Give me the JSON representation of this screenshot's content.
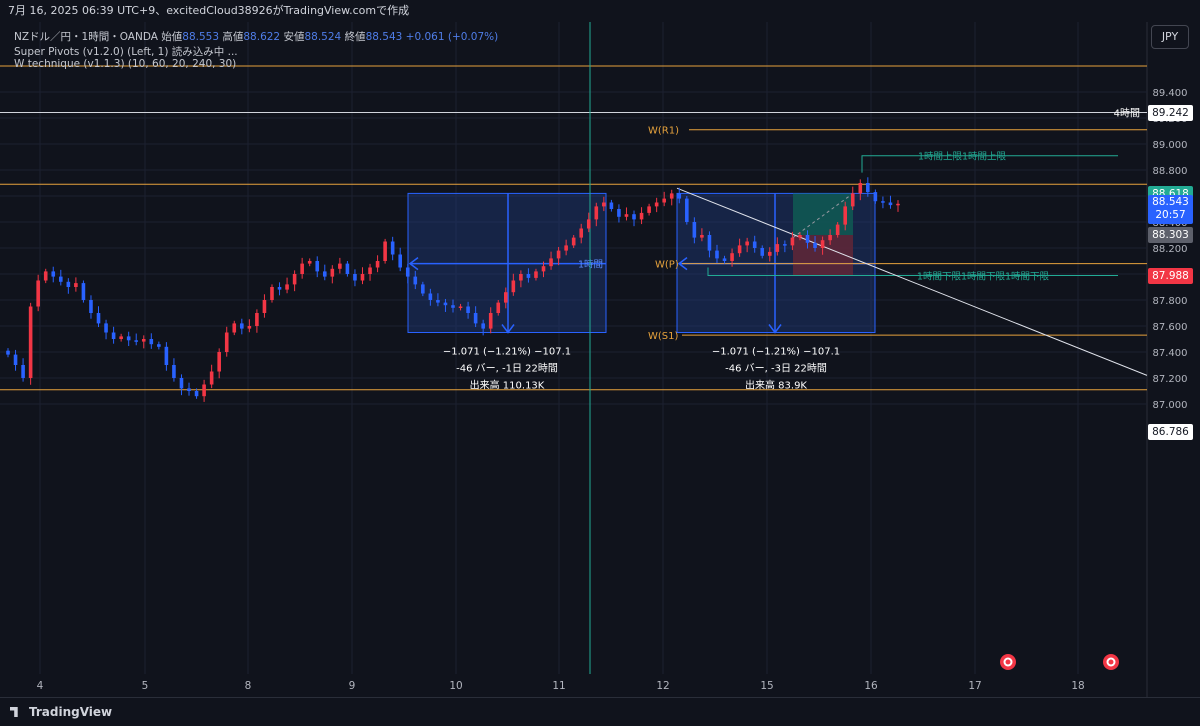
{
  "header": {
    "text": "7月 16, 2025 06:39 UTC+9、excitedCloud38926がTradingView.comで作成"
  },
  "legend": {
    "symbol": "NZドル／円・1時間・OANDA",
    "open_label": "始値",
    "open": "88.553",
    "high_label": "高値",
    "high": "88.622",
    "low_label": "安値",
    "low": "88.524",
    "close_label": "終値",
    "close": "88.543",
    "change": "+0.061 (+0.07%)",
    "indicator1": "Super Pivots (v1.2.0) (Left, 1) 読み込み中 ...",
    "indicator2": "W technique (v1.1.3) (10, 60, 20, 240, 30)"
  },
  "currency": "JPY",
  "footer": {
    "logo": "TradingView"
  },
  "colors": {
    "up": "#f23645",
    "down": "#2962ff",
    "orange": "#e6a23c",
    "green": "#22ab94",
    "white_line": "#d1d4dc",
    "box_fill": "#1f3a7a",
    "box_stroke": "#2962ff"
  },
  "chart_data": {
    "type": "candlestick",
    "symbol": "NZDJPY",
    "timeframe": "1時間",
    "ylim": [
      86.72,
      89.64
    ],
    "y_ticks": [
      "89.400",
      "89.200",
      "89.000",
      "88.800",
      "88.600",
      "88.400",
      "88.200",
      "88.000",
      "87.800",
      "87.600",
      "87.400",
      "87.200",
      "87.000"
    ],
    "x_ticks": [
      "4",
      "5",
      "8",
      "9",
      "10",
      "11",
      "12",
      "15",
      "16",
      "17",
      "18"
    ],
    "close_path": [
      87.38,
      87.3,
      87.2,
      87.75,
      87.95,
      88.02,
      87.98,
      87.94,
      87.9,
      87.93,
      87.8,
      87.7,
      87.62,
      87.55,
      87.5,
      87.52,
      87.49,
      87.48,
      87.5,
      87.46,
      87.44,
      87.3,
      87.2,
      87.12,
      87.1,
      87.06,
      87.15,
      87.25,
      87.4,
      87.55,
      87.62,
      87.58,
      87.6,
      87.7,
      87.8,
      87.9,
      87.88,
      87.92,
      88.0,
      88.08,
      88.1,
      88.02,
      87.98,
      88.04,
      88.08,
      88.0,
      87.95,
      88.0,
      88.05,
      88.1,
      88.25,
      88.15,
      88.05,
      87.98,
      87.92,
      87.85,
      87.8,
      87.78,
      87.76,
      87.74,
      87.75,
      87.7,
      87.62,
      87.58,
      87.7,
      87.78,
      87.86,
      87.95,
      88.0,
      87.97,
      88.02,
      88.06,
      88.12,
      88.18,
      88.22,
      88.28,
      88.35,
      88.42,
      88.52,
      88.55,
      88.5,
      88.44,
      88.46,
      88.42,
      88.47,
      88.52,
      88.55,
      88.58,
      88.62,
      88.58,
      88.4,
      88.28,
      88.3,
      88.18,
      88.12,
      88.1,
      88.16,
      88.22,
      88.25,
      88.2,
      88.14,
      88.17,
      88.23,
      88.22,
      88.28,
      88.3,
      88.24,
      88.2,
      88.26,
      88.3,
      88.38,
      88.52,
      88.62,
      88.7,
      88.63,
      88.56,
      88.55,
      88.53,
      88.54
    ],
    "candles_estimated": true,
    "pivots": [
      {
        "label": "W(R1)",
        "value": 89.11
      },
      {
        "label": "W(P)",
        "value": 88.08
      },
      {
        "label": "W(S1)",
        "value": 87.53
      }
    ],
    "hlines": [
      {
        "label": "4時間",
        "value": 89.242
      },
      {
        "label": "1時間上限1時間上限",
        "value": 88.91
      },
      {
        "label": "1時間下限1時間下限1時間下限",
        "value": 87.988
      },
      {
        "label": "",
        "value": 88.69
      },
      {
        "label": "",
        "value": 89.6
      },
      {
        "label": "",
        "value": 87.11
      }
    ],
    "hline_1h_label": "1時間",
    "measures": [
      {
        "line1": "−1.071 (−1.21%) −107.1",
        "line2": "-46 バー, -1日 22時間",
        "line3": "出来高 110.13K"
      },
      {
        "line1": "−1.071 (−1.21%) −107.1",
        "line2": "-46 バー, -3日 22時間",
        "line3": "出来高 83.9K"
      }
    ],
    "price_badges": [
      {
        "text": "89.242",
        "value": 89.242,
        "bg": "#ffffff",
        "fg": "#131722"
      },
      {
        "text": "88.618",
        "value": 88.618,
        "bg": "#22ab94",
        "fg": "#ffffff"
      },
      {
        "text": "88.543",
        "value": 88.543,
        "bg": "#2962ff",
        "fg": "#ffffff",
        "sub": "20:57"
      },
      {
        "text": "88.303",
        "value": 88.303,
        "bg": "#5d606b",
        "fg": "#ffffff"
      },
      {
        "text": "87.988",
        "value": 87.988,
        "bg": "#f23645",
        "fg": "#ffffff"
      },
      {
        "text": "86.786",
        "value": 86.786,
        "bg": "#ffffff",
        "fg": "#131722"
      }
    ]
  }
}
